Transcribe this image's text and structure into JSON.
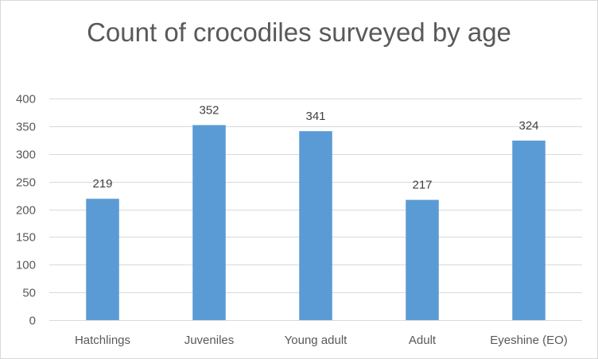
{
  "chart_data": {
    "type": "bar",
    "title": "Count of crocodiles surveyed by age",
    "categories": [
      "Hatchlings",
      "Juveniles",
      "Young adult",
      "Adult",
      "Eyeshine (EO)"
    ],
    "values": [
      219,
      352,
      341,
      217,
      324
    ],
    "data_labels": [
      "219",
      "352",
      "341",
      "217",
      "324"
    ],
    "y_ticks": [
      0,
      50,
      100,
      150,
      200,
      250,
      300,
      350,
      400
    ],
    "ylim": [
      0,
      400
    ],
    "grid": true,
    "legend": "none",
    "bar_color": "#5b9bd5",
    "grid_color": "#d9d9d9"
  }
}
